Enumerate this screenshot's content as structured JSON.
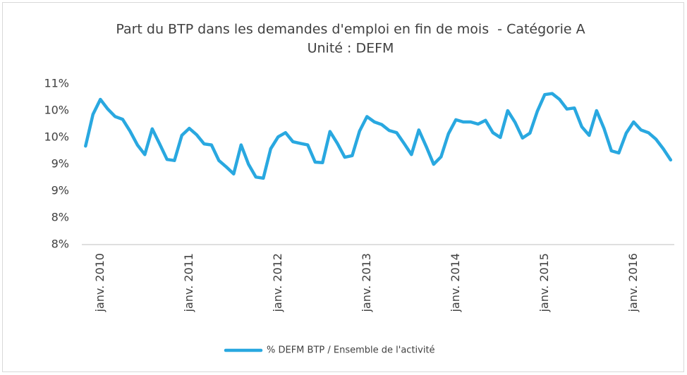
{
  "chart_data": {
    "type": "line",
    "title": "Part du BTP dans les demandes d'emploi en fin de mois  - Catégorie A",
    "subtitle": "Unité : DEFM",
    "categories": [
      null,
      null,
      "janv. 2010",
      null,
      null,
      null,
      null,
      null,
      null,
      null,
      null,
      null,
      null,
      null,
      "janv. 2011",
      null,
      null,
      null,
      null,
      null,
      null,
      null,
      null,
      null,
      null,
      null,
      "janv. 2012",
      null,
      null,
      null,
      null,
      null,
      null,
      null,
      null,
      null,
      null,
      null,
      "janv. 2013",
      null,
      null,
      null,
      null,
      null,
      null,
      null,
      null,
      null,
      null,
      null,
      "janv. 2014",
      null,
      null,
      null,
      null,
      null,
      null,
      null,
      null,
      null,
      null,
      null,
      "janv. 2015",
      null,
      null,
      null,
      null,
      null,
      null,
      null,
      null,
      null,
      null,
      null,
      "janv. 2016",
      null,
      null,
      null,
      null,
      null
    ],
    "series": [
      {
        "name": "% DEFM BTP / Ensemble de l'activité",
        "color": "#29a8e0",
        "values": [
          9.34,
          9.93,
          10.21,
          10.03,
          9.89,
          9.84,
          9.62,
          9.36,
          9.18,
          9.66,
          9.38,
          9.09,
          9.07,
          9.54,
          9.67,
          9.55,
          9.38,
          9.36,
          9.07,
          8.95,
          8.82,
          9.36,
          9.0,
          8.76,
          8.74,
          9.29,
          9.51,
          9.59,
          9.42,
          9.39,
          9.36,
          9.04,
          9.03,
          9.61,
          9.39,
          9.13,
          9.16,
          9.62,
          9.89,
          9.79,
          9.74,
          9.63,
          9.59,
          9.39,
          9.18,
          9.64,
          9.33,
          9.0,
          9.14,
          9.57,
          9.83,
          9.79,
          9.79,
          9.75,
          9.82,
          9.59,
          9.5,
          10.0,
          9.78,
          9.49,
          9.58,
          9.99,
          10.3,
          10.32,
          10.21,
          10.03,
          10.05,
          9.7,
          9.54,
          10.0,
          9.67,
          9.25,
          9.21,
          9.58,
          9.79,
          9.64,
          9.59,
          9.47,
          9.29,
          9.08
        ]
      }
    ],
    "ylim": [
      7.5,
      10.5
    ],
    "yticks": [
      {
        "value": 7.5,
        "label": "8%"
      },
      {
        "value": 8.0,
        "label": "8%"
      },
      {
        "value": 8.5,
        "label": "9%"
      },
      {
        "value": 9.0,
        "label": "9%"
      },
      {
        "value": 9.5,
        "label": "10%"
      },
      {
        "value": 10.0,
        "label": "10%"
      },
      {
        "value": 10.5,
        "label": "11%"
      }
    ],
    "grid": false,
    "legend": "bottom"
  }
}
